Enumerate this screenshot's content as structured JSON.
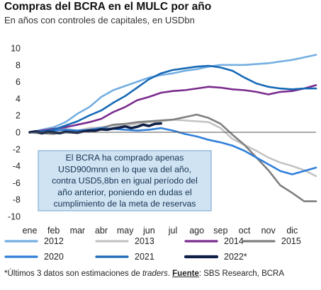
{
  "title": "Compras del BCRA en el MULC por año",
  "subtitle": "En años con controles de capitales, en USDbn",
  "footnote": {
    "prefix": "*Últimos 3 datos son estimaciones de ",
    "italic": "traders",
    "middle": ". ",
    "bold": "Fuente",
    "suffix": ": SBS Research, BCRA"
  },
  "annotation": {
    "lines": [
      "El BCRA ha comprado apenas",
      "USD900mnn en lo que va del año,",
      "contra USD5,8bn en igual período del",
      "año anterior, poniendo en dudas el",
      "cumplimiento de la meta de reservas"
    ],
    "background": "#cfe3f3",
    "border": "#6fa0cc"
  },
  "chart_data": {
    "type": "line",
    "title": "Compras del BCRA en el MULC por año",
    "subtitle": "En años con controles de capitales, en USDbn",
    "xlabel": "",
    "ylabel": "",
    "x_ticks": [
      "ene",
      "feb",
      "mar",
      "abr",
      "may",
      "jun",
      "jul",
      "ago",
      "sep",
      "oct",
      "nov",
      "dic"
    ],
    "xlim": [
      0,
      12
    ],
    "ylim": [
      -10,
      10
    ],
    "y_ticks": [
      -10,
      -8,
      -6,
      -4,
      -2,
      0,
      2,
      4,
      6,
      8,
      10
    ],
    "grid": false,
    "legend_position": "bottom",
    "series": [
      {
        "name": "2012",
        "color": "#74aee2",
        "width": 2.6,
        "x": [
          0,
          0.5,
          1,
          1.5,
          2,
          2.5,
          3,
          3.5,
          4,
          4.5,
          5,
          5.5,
          6,
          6.5,
          7,
          7.5,
          8,
          8.5,
          9,
          9.5,
          10,
          10.5,
          11,
          11.5,
          12
        ],
        "y": [
          0,
          0.3,
          0.6,
          1.2,
          2.2,
          3.0,
          4.2,
          5.0,
          5.5,
          6.0,
          6.5,
          6.8,
          7.0,
          7.3,
          7.5,
          7.8,
          8.0,
          8.0,
          8.0,
          8.1,
          8.2,
          8.4,
          8.6,
          8.9,
          9.2
        ]
      },
      {
        "name": "2013",
        "color": "#c4c4c4",
        "width": 2.6,
        "x": [
          0,
          0.5,
          1,
          1.5,
          2,
          2.5,
          3,
          3.5,
          4,
          4.5,
          5,
          5.5,
          6,
          6.5,
          7,
          7.5,
          8,
          8.5,
          9,
          9.5,
          10,
          10.5,
          11,
          11.5,
          12
        ],
        "y": [
          0,
          -0.2,
          0.3,
          0.4,
          0.2,
          0.5,
          0.6,
          0.8,
          0.8,
          1.0,
          1.2,
          1.3,
          1.5,
          1.4,
          1.3,
          1.2,
          0.5,
          -0.8,
          -1.5,
          -2.2,
          -3.0,
          -3.6,
          -4.0,
          -4.5,
          -5.2
        ]
      },
      {
        "name": "2014",
        "color": "#7a2c8e",
        "width": 2.6,
        "x": [
          0,
          0.5,
          1,
          1.5,
          2,
          2.5,
          3,
          3.5,
          4,
          4.5,
          5,
          5.5,
          6,
          6.5,
          7,
          7.5,
          8,
          8.5,
          9,
          9.5,
          10,
          10.5,
          11,
          11.5,
          12
        ],
        "y": [
          0,
          0.2,
          0.4,
          0.6,
          0.9,
          1.2,
          1.6,
          2.4,
          3.0,
          3.8,
          4.2,
          4.7,
          4.9,
          5.0,
          5.2,
          5.4,
          5.3,
          5.1,
          5.0,
          4.8,
          4.5,
          4.8,
          4.9,
          5.2,
          5.6
        ]
      },
      {
        "name": "2015",
        "color": "#7f7f7f",
        "width": 2.6,
        "x": [
          0,
          0.5,
          1,
          1.5,
          2,
          2.5,
          3,
          3.5,
          4,
          4.5,
          5,
          5.5,
          6,
          6.5,
          7,
          7.5,
          8,
          8.5,
          9,
          9.5,
          10,
          10.5,
          11,
          11.5,
          12
        ],
        "y": [
          0,
          -0.1,
          -0.2,
          0.1,
          0.2,
          0.3,
          0.5,
          0.9,
          1.0,
          1.2,
          1.3,
          1.4,
          1.5,
          1.8,
          2.1,
          1.7,
          1.0,
          -0.3,
          -1.5,
          -3.0,
          -4.5,
          -6.3,
          -7.2,
          -8.2,
          -8.2
        ]
      },
      {
        "name": "2020",
        "color": "#2f7fd9",
        "width": 2.6,
        "x": [
          0,
          0.5,
          1,
          1.5,
          2,
          2.5,
          3,
          3.5,
          4,
          4.5,
          5,
          5.5,
          6,
          6.5,
          7,
          7.5,
          8,
          8.5,
          9,
          9.5,
          10,
          10.5,
          11,
          11.5,
          12
        ],
        "y": [
          0,
          0.0,
          0.2,
          0.3,
          0.2,
          0.3,
          0.5,
          0.4,
          0.3,
          0.2,
          0.3,
          0.5,
          0.2,
          -0.2,
          -0.5,
          -0.9,
          -1.2,
          -1.6,
          -2.2,
          -3.0,
          -3.8,
          -4.6,
          -5.0,
          -4.6,
          -4.2
        ]
      },
      {
        "name": "2021",
        "color": "#1669b5",
        "width": 2.6,
        "x": [
          0,
          0.5,
          1,
          1.5,
          2,
          2.5,
          3,
          3.5,
          4,
          4.5,
          5,
          5.5,
          6,
          6.5,
          7,
          7.5,
          8,
          8.5,
          9,
          9.5,
          10,
          10.5,
          11,
          11.5,
          12
        ],
        "y": [
          0,
          0.1,
          0.3,
          0.8,
          1.3,
          2.0,
          2.6,
          3.5,
          4.3,
          5.3,
          6.3,
          7.0,
          7.4,
          7.6,
          7.8,
          7.9,
          7.7,
          7.3,
          6.5,
          5.8,
          5.4,
          5.2,
          5.1,
          5.2,
          5.2
        ]
      },
      {
        "name": "2022*",
        "color": "#0f1f46",
        "width": 3.6,
        "x": [
          0,
          0.25,
          0.5,
          0.75,
          1,
          1.25,
          1.5,
          1.75,
          2,
          2.25,
          2.5,
          2.75,
          3,
          3.25,
          3.5,
          3.75,
          4,
          4.25,
          4.5,
          4.75,
          5,
          5.25,
          5.5
        ],
        "y": [
          0,
          0.1,
          -0.1,
          0.05,
          0.0,
          -0.1,
          0.05,
          0.0,
          -0.05,
          0.1,
          0.2,
          0.2,
          0.35,
          0.3,
          0.45,
          0.55,
          0.7,
          0.5,
          0.65,
          0.9,
          0.75,
          1.0,
          1.05
        ]
      }
    ]
  }
}
